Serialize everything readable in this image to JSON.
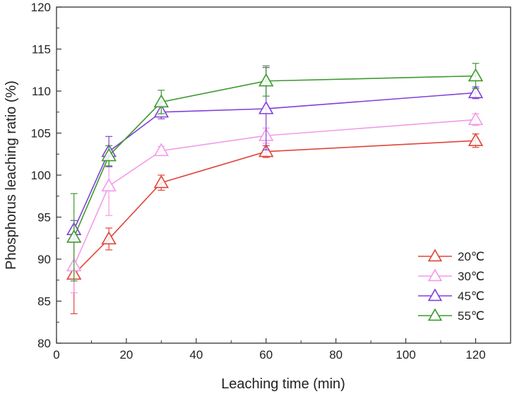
{
  "chart_data": {
    "type": "line",
    "title": "",
    "xlabel": "Leaching time (min)",
    "ylabel": "Phosphorus leaching ratio (%)",
    "xlim": [
      0,
      130
    ],
    "ylim": [
      80,
      120
    ],
    "xticks": [
      0,
      20,
      40,
      60,
      80,
      100,
      120
    ],
    "yticks": [
      80,
      85,
      90,
      95,
      100,
      105,
      110,
      115,
      120
    ],
    "grid": false,
    "legend_position": "bottom-right",
    "marker": "open-triangle",
    "x": [
      5,
      15,
      30,
      60,
      120
    ],
    "series": [
      {
        "name": "20℃",
        "color": "#e0453a",
        "values": [
          88.2,
          92.4,
          99.1,
          102.8,
          104.1
        ],
        "errors": [
          4.7,
          1.3,
          0.9,
          0.7,
          0.8
        ]
      },
      {
        "name": "30℃",
        "color": "#f19be8",
        "values": [
          89.2,
          98.7,
          102.9,
          104.7,
          106.6
        ],
        "errors": [
          3.2,
          3.5,
          0.5,
          0.9,
          0.7
        ]
      },
      {
        "name": "45℃",
        "color": "#8040d8",
        "values": [
          93.5,
          102.8,
          107.5,
          107.9,
          109.8
        ],
        "errors": [
          1.1,
          1.8,
          0.8,
          4.9,
          0.7
        ]
      },
      {
        "name": "55℃",
        "color": "#3c9a2e",
        "values": [
          92.6,
          102.3,
          108.7,
          111.2,
          111.8
        ],
        "errors": [
          5.2,
          1.2,
          1.4,
          1.8,
          1.5
        ]
      }
    ]
  }
}
